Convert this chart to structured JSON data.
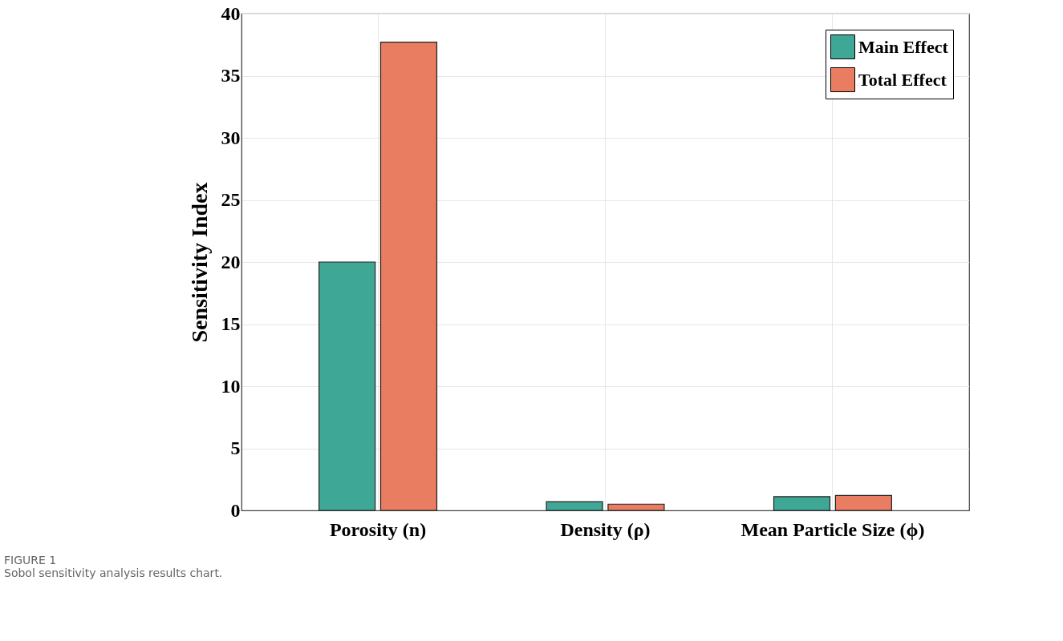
{
  "chart_data": {
    "type": "bar",
    "ylabel": "Sensitivity Index",
    "categories": [
      "Porosity (n)",
      "Density (ρ)",
      "Mean Particle Size (ϕ)"
    ],
    "series": [
      {
        "name": "Main Effect",
        "color": "#3fa796",
        "values": [
          20.0,
          0.7,
          1.1
        ]
      },
      {
        "name": "Total Effect",
        "color": "#e97d62",
        "values": [
          37.7,
          0.5,
          1.2
        ]
      }
    ],
    "ylim": [
      0,
      40
    ],
    "yticks": [
      0,
      5,
      10,
      15,
      20,
      25,
      30,
      35,
      40
    ],
    "grid": true,
    "legend": "top right",
    "annotations": [
      "FIGURE 1",
      "Sobol sensitivity analysis results chart."
    ]
  }
}
